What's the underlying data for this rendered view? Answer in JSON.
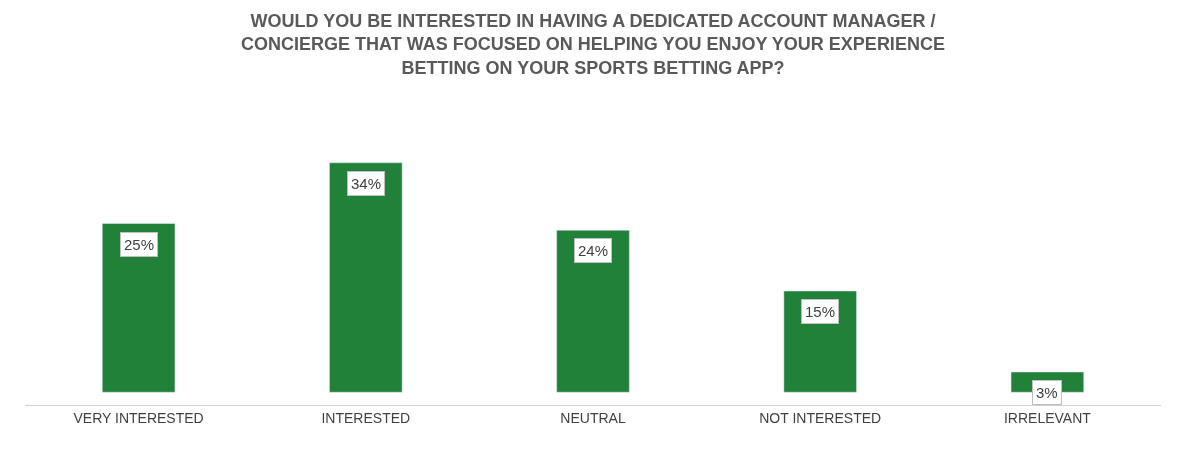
{
  "chart_data": {
    "type": "bar",
    "title": "WOULD YOU BE INTERESTED IN HAVING A DEDICATED ACCOUNT MANAGER /\nCONCIERGE THAT WAS FOCUSED ON HELPING YOU ENJOY YOUR EXPERIENCE\nBETTING ON YOUR SPORTS BETTING APP?",
    "categories": [
      "VERY INTERESTED",
      "INTERESTED",
      "NEUTRAL",
      "NOT INTERESTED",
      "IRRELEVANT"
    ],
    "values": [
      25,
      34,
      24,
      15,
      3
    ],
    "value_labels": [
      "25%",
      "34%",
      "24%",
      "15%",
      "3%"
    ],
    "color": "#218139",
    "legend": false
  }
}
